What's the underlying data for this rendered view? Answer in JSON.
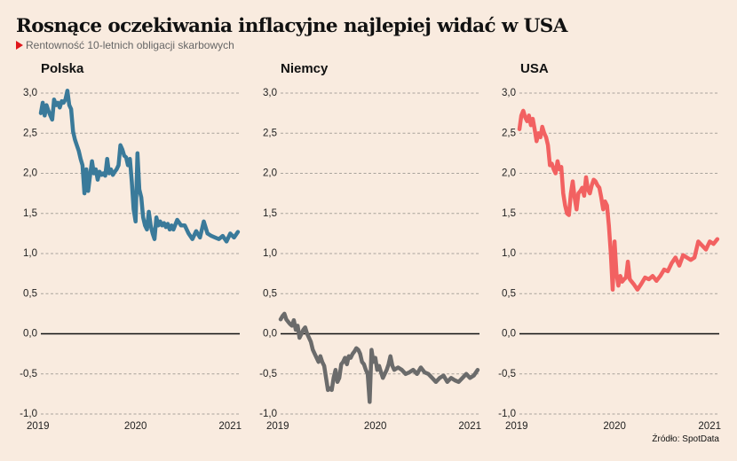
{
  "header": {
    "title": "Rosnące oczekiwania inflacyjne najlepiej widać w USA",
    "subtitle": "Rentowność 10-letnich obligacji skarbowych",
    "source": "Źródło: SpotData"
  },
  "chart_data": [
    {
      "type": "line",
      "title": "Polska",
      "color": "#3a7a9a",
      "xlabel": "",
      "ylabel": "",
      "ylim": [
        -1.0,
        3.0
      ],
      "xlim": [
        2019.0,
        2021.1
      ],
      "yticks": [
        "3,0",
        "2,5",
        "2,0",
        "1,5",
        "1,0",
        "0,5",
        "0,0",
        "-0,5",
        "-1,0"
      ],
      "xticks": [
        "2019",
        "2020",
        "2021"
      ],
      "grid": true,
      "x": [
        2019.0,
        2019.02,
        2019.04,
        2019.06,
        2019.08,
        2019.1,
        2019.12,
        2019.14,
        2019.16,
        2019.18,
        2019.2,
        2019.22,
        2019.24,
        2019.26,
        2019.28,
        2019.3,
        2019.32,
        2019.34,
        2019.36,
        2019.38,
        2019.4,
        2019.42,
        2019.44,
        2019.46,
        2019.48,
        2019.5,
        2019.52,
        2019.54,
        2019.56,
        2019.58,
        2019.6,
        2019.62,
        2019.64,
        2019.66,
        2019.68,
        2019.7,
        2019.72,
        2019.74,
        2019.76,
        2019.78,
        2019.8,
        2019.82,
        2019.84,
        2019.86,
        2019.88,
        2019.9,
        2019.92,
        2019.94,
        2019.96,
        2019.98,
        2020.0,
        2020.02,
        2020.04,
        2020.06,
        2020.08,
        2020.1,
        2020.12,
        2020.14,
        2020.16,
        2020.18,
        2020.2,
        2020.22,
        2020.24,
        2020.26,
        2020.28,
        2020.3,
        2020.32,
        2020.34,
        2020.36,
        2020.38,
        2020.4,
        2020.44,
        2020.48,
        2020.52,
        2020.56,
        2020.6,
        2020.64,
        2020.68,
        2020.72,
        2020.76,
        2020.8,
        2020.84,
        2020.88,
        2020.92,
        2020.96,
        2021.0,
        2021.04,
        2021.08
      ],
      "values": [
        2.75,
        2.88,
        2.72,
        2.85,
        2.78,
        2.72,
        2.67,
        2.92,
        2.85,
        2.88,
        2.82,
        2.9,
        2.88,
        2.92,
        3.03,
        2.85,
        2.8,
        2.52,
        2.42,
        2.35,
        2.28,
        2.18,
        2.1,
        1.75,
        2.05,
        1.78,
        1.98,
        2.15,
        2.0,
        2.05,
        1.92,
        2.02,
        1.98,
        2.0,
        1.97,
        2.18,
        2.0,
        2.05,
        1.98,
        2.02,
        2.05,
        2.1,
        2.35,
        2.3,
        2.22,
        2.2,
        2.1,
        2.18,
        1.9,
        1.55,
        1.4,
        2.25,
        1.8,
        1.7,
        1.45,
        1.35,
        1.3,
        1.52,
        1.35,
        1.25,
        1.18,
        1.45,
        1.35,
        1.4,
        1.35,
        1.38,
        1.33,
        1.37,
        1.3,
        1.35,
        1.3,
        1.42,
        1.35,
        1.35,
        1.25,
        1.18,
        1.28,
        1.2,
        1.4,
        1.25,
        1.22,
        1.2,
        1.18,
        1.22,
        1.15,
        1.25,
        1.2,
        1.27
      ]
    },
    {
      "type": "line",
      "title": "Niemcy",
      "color": "#6b6b6b",
      "xlabel": "",
      "ylabel": "",
      "ylim": [
        -1.0,
        3.0
      ],
      "xlim": [
        2019.0,
        2021.1
      ],
      "yticks": [
        "3,0",
        "2,5",
        "2,0",
        "1,5",
        "1,0",
        "0,5",
        "0,0",
        "-0,5",
        "-1,0"
      ],
      "xticks": [
        "2019",
        "2020",
        "2021"
      ],
      "grid": true,
      "x": [
        2019.0,
        2019.02,
        2019.04,
        2019.06,
        2019.08,
        2019.1,
        2019.12,
        2019.14,
        2019.16,
        2019.18,
        2019.2,
        2019.22,
        2019.24,
        2019.26,
        2019.28,
        2019.3,
        2019.32,
        2019.34,
        2019.36,
        2019.38,
        2019.4,
        2019.42,
        2019.44,
        2019.46,
        2019.48,
        2019.5,
        2019.52,
        2019.54,
        2019.56,
        2019.58,
        2019.6,
        2019.62,
        2019.64,
        2019.66,
        2019.68,
        2019.7,
        2019.72,
        2019.74,
        2019.76,
        2019.78,
        2019.8,
        2019.82,
        2019.84,
        2019.86,
        2019.88,
        2019.9,
        2019.92,
        2019.94,
        2019.96,
        2019.98,
        2020.0,
        2020.02,
        2020.04,
        2020.06,
        2020.08,
        2020.1,
        2020.12,
        2020.14,
        2020.16,
        2020.18,
        2020.2,
        2020.24,
        2020.28,
        2020.32,
        2020.36,
        2020.4,
        2020.44,
        2020.48,
        2020.52,
        2020.56,
        2020.6,
        2020.64,
        2020.68,
        2020.72,
        2020.76,
        2020.8,
        2020.84,
        2020.88,
        2020.92,
        2020.96,
        2021.0,
        2021.04,
        2021.08
      ],
      "values": [
        0.18,
        0.22,
        0.25,
        0.18,
        0.15,
        0.12,
        0.1,
        0.17,
        0.05,
        0.1,
        -0.05,
        0.0,
        0.05,
        0.08,
        0.0,
        -0.05,
        -0.1,
        -0.2,
        -0.25,
        -0.3,
        -0.35,
        -0.28,
        -0.35,
        -0.4,
        -0.55,
        -0.7,
        -0.68,
        -0.7,
        -0.55,
        -0.45,
        -0.6,
        -0.55,
        -0.38,
        -0.35,
        -0.3,
        -0.38,
        -0.28,
        -0.3,
        -0.25,
        -0.22,
        -0.18,
        -0.2,
        -0.25,
        -0.35,
        -0.38,
        -0.45,
        -0.5,
        -0.85,
        -0.2,
        -0.35,
        -0.3,
        -0.45,
        -0.4,
        -0.48,
        -0.55,
        -0.5,
        -0.45,
        -0.38,
        -0.28,
        -0.4,
        -0.45,
        -0.42,
        -0.45,
        -0.5,
        -0.48,
        -0.45,
        -0.5,
        -0.42,
        -0.48,
        -0.5,
        -0.55,
        -0.6,
        -0.55,
        -0.52,
        -0.6,
        -0.55,
        -0.58,
        -0.6,
        -0.55,
        -0.5,
        -0.55,
        -0.52,
        -0.45
      ]
    },
    {
      "type": "line",
      "title": "USA",
      "color": "#f26161",
      "xlabel": "",
      "ylabel": "",
      "ylim": [
        -1.0,
        3.0
      ],
      "xlim": [
        2019.0,
        2021.1
      ],
      "yticks": [
        "3,0",
        "2,5",
        "2,0",
        "1,5",
        "1,0",
        "0,5",
        "0,0",
        "-0,5",
        "-1,0"
      ],
      "xticks": [
        "2019",
        "2020",
        "2021"
      ],
      "grid": true,
      "x": [
        2019.0,
        2019.02,
        2019.04,
        2019.06,
        2019.08,
        2019.1,
        2019.12,
        2019.14,
        2019.16,
        2019.18,
        2019.2,
        2019.22,
        2019.24,
        2019.26,
        2019.28,
        2019.3,
        2019.32,
        2019.34,
        2019.36,
        2019.38,
        2019.4,
        2019.42,
        2019.44,
        2019.46,
        2019.48,
        2019.5,
        2019.52,
        2019.54,
        2019.56,
        2019.58,
        2019.6,
        2019.62,
        2019.64,
        2019.66,
        2019.68,
        2019.7,
        2019.72,
        2019.74,
        2019.76,
        2019.78,
        2019.8,
        2019.82,
        2019.84,
        2019.86,
        2019.88,
        2019.9,
        2019.92,
        2019.94,
        2019.96,
        2019.98,
        2020.0,
        2020.02,
        2020.04,
        2020.06,
        2020.08,
        2020.1,
        2020.12,
        2020.14,
        2020.16,
        2020.18,
        2020.2,
        2020.24,
        2020.28,
        2020.32,
        2020.36,
        2020.4,
        2020.44,
        2020.48,
        2020.52,
        2020.56,
        2020.6,
        2020.64,
        2020.68,
        2020.72,
        2020.76,
        2020.8,
        2020.84,
        2020.88,
        2020.92,
        2020.96,
        2021.0,
        2021.04,
        2021.08
      ],
      "values": [
        2.55,
        2.72,
        2.78,
        2.7,
        2.65,
        2.72,
        2.6,
        2.68,
        2.55,
        2.4,
        2.5,
        2.45,
        2.58,
        2.5,
        2.45,
        2.35,
        2.1,
        2.12,
        2.05,
        2.0,
        2.15,
        2.05,
        2.08,
        1.75,
        1.6,
        1.5,
        1.48,
        1.75,
        1.9,
        1.7,
        1.55,
        1.75,
        1.78,
        1.82,
        1.72,
        1.95,
        1.8,
        1.75,
        1.85,
        1.92,
        1.9,
        1.85,
        1.82,
        1.7,
        1.55,
        1.65,
        1.6,
        1.35,
        1.0,
        0.55,
        1.15,
        0.75,
        0.6,
        0.72,
        0.65,
        0.68,
        0.7,
        0.9,
        0.68,
        0.65,
        0.62,
        0.55,
        0.62,
        0.7,
        0.68,
        0.72,
        0.66,
        0.72,
        0.8,
        0.78,
        0.88,
        0.95,
        0.85,
        0.98,
        0.95,
        0.92,
        0.95,
        1.15,
        1.1,
        1.05,
        1.15,
        1.12,
        1.18
      ]
    }
  ]
}
